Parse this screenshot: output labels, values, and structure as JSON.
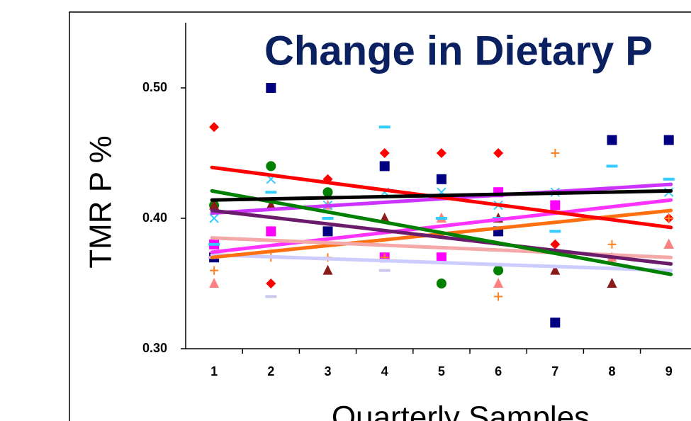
{
  "chart_data": {
    "type": "scatter-trend",
    "title": "Change in Dietary P",
    "y_label": "TMR P %",
    "x_label": "Quarterly Samples",
    "categories": [
      "1",
      "2",
      "3",
      "4",
      "5",
      "6",
      "7",
      "8",
      "9"
    ],
    "ylim": [
      0.3,
      0.55
    ],
    "yticks": [
      {
        "value": 0.3,
        "label": "0.30"
      },
      {
        "value": 0.4,
        "label": "0.40"
      },
      {
        "value": 0.5,
        "label": "0.50"
      }
    ],
    "series": [
      {
        "marker": "square",
        "color": "#000080",
        "values": [
          0.37,
          0.5,
          0.39,
          0.44,
          0.43,
          0.39,
          0.32,
          0.46,
          0.46
        ],
        "trend": [
          0.414,
          0.421
        ],
        "trend_color": "#000000"
      },
      {
        "marker": "diamond",
        "color": "#ff0000",
        "values": [
          0.47,
          0.35,
          0.43,
          0.45,
          0.45,
          0.45,
          0.38,
          0.37,
          0.4
        ],
        "trend": [
          0.439,
          0.393
        ],
        "trend_color": "#ff0000"
      },
      {
        "marker": "circle",
        "color": "#008000",
        "values": [
          0.41,
          0.44,
          0.42,
          null,
          0.35,
          0.36,
          0.41,
          null,
          null
        ],
        "trend": [
          0.421,
          0.357
        ],
        "trend_color": "#008000"
      },
      {
        "marker": "triangle",
        "color": "#8b1a1a",
        "values": [
          0.41,
          0.41,
          0.36,
          0.4,
          0.4,
          0.4,
          0.36,
          0.35,
          0.38
        ],
        "trend": [
          0.406,
          0.365
        ],
        "trend_color": "#6a1b6a"
      },
      {
        "marker": "triangle",
        "color": "#ff8080",
        "values": [
          0.35,
          0.39,
          0.41,
          0.37,
          0.4,
          0.35,
          0.41,
          0.37,
          0.38
        ],
        "trend": [
          0.385,
          0.37
        ],
        "trend_color": "#f4a8a8"
      },
      {
        "marker": "square",
        "color": "#ff00ff",
        "values": [
          0.38,
          0.39,
          null,
          0.37,
          0.37,
          0.42,
          0.41,
          null,
          null
        ],
        "trend": [
          0.374,
          0.414
        ],
        "trend_color": "#ff33ff"
      },
      {
        "marker": "x",
        "color": "#33ccff",
        "values": [
          0.4,
          0.43,
          0.41,
          0.42,
          0.42,
          0.41,
          0.42,
          null,
          0.42
        ],
        "trend": [
          0.404,
          0.426
        ],
        "trend_color": "#cc33ff"
      },
      {
        "marker": "dash",
        "color": "#33ccff",
        "values": [
          0.38,
          0.42,
          0.4,
          0.47,
          0.4,
          0.4,
          0.39,
          0.44,
          0.43
        ]
      },
      {
        "marker": "plus",
        "color": "#ff8020",
        "values": [
          0.36,
          0.37,
          0.37,
          0.37,
          null,
          0.34,
          0.45,
          0.38,
          0.4
        ],
        "trend": [
          0.37,
          0.406
        ],
        "trend_color": "#ff7010"
      },
      {
        "marker": "dash",
        "color": "#c8c8f0",
        "values": [
          0.37,
          0.34,
          null,
          0.36,
          null,
          null,
          null,
          null,
          null
        ],
        "trend": [
          0.372,
          0.36
        ],
        "trend_color": "#ccccff"
      }
    ]
  }
}
